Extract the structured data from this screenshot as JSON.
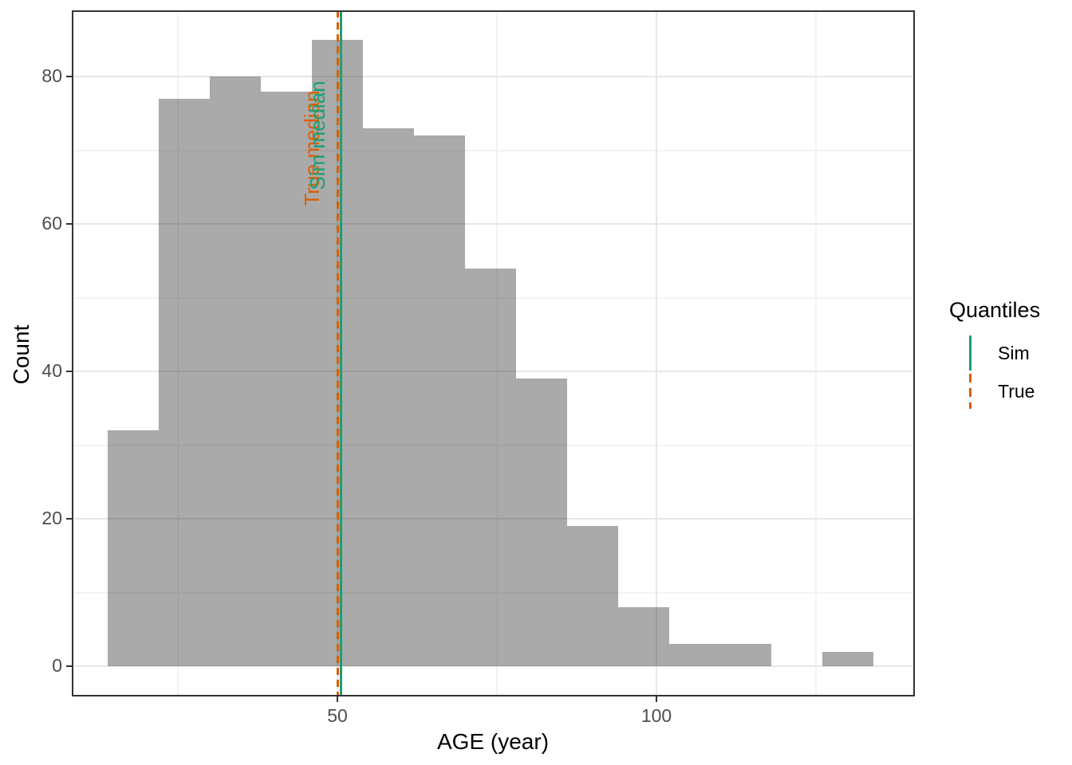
{
  "figure": {
    "background": "#ffffff"
  },
  "chart_data": {
    "type": "bar",
    "subtype": "histogram",
    "title": "",
    "xlabel": "AGE (year)",
    "ylabel": "Count",
    "bin_start": 14,
    "bin_width": 8,
    "bin_edges": [
      14,
      22,
      30,
      38,
      46,
      54,
      62,
      70,
      78,
      86,
      94,
      102,
      110,
      118,
      126,
      134
    ],
    "counts": [
      32,
      77,
      80,
      78,
      85,
      73,
      72,
      54,
      39,
      19,
      8,
      3,
      3,
      0,
      2
    ],
    "xlim": [
      8.375,
      140.5
    ],
    "ylim": [
      -4.1,
      89.0
    ],
    "x_major_ticks": [
      50,
      100
    ],
    "x_minor_gridlines": [
      25,
      75,
      125
    ],
    "y_major_ticks": [
      0,
      20,
      40,
      60,
      80
    ],
    "y_minor_gridlines": [
      10,
      30,
      50,
      70
    ],
    "grid": "on",
    "bar_color": "#000000",
    "bar_alpha": 0.335,
    "bar_color_flat": "#ABABAB",
    "vlines": [
      {
        "name": "Sim",
        "x": 50.5,
        "style": "solid",
        "color": "#1B9E77",
        "annotation": "Sim median",
        "annotation_dx": -29,
        "annotation_y": 72.0
      },
      {
        "name": "True",
        "x": 50.1,
        "style": "dashed",
        "color": "#D95F02",
        "annotation": "True median",
        "annotation_dx": -33,
        "annotation_y": 70.3
      }
    ]
  },
  "legend": {
    "title": "Quantiles",
    "entries": [
      {
        "label": "Sim",
        "color": "#1B9E77",
        "line": "solid"
      },
      {
        "label": "True",
        "color": "#D95F02",
        "line": "dashed"
      }
    ]
  },
  "colors": {
    "panel_border": "#333333",
    "gridline_major": "#E7E7E7",
    "gridline_minor": "#F3F3F3",
    "tick_label": "#4d4d4d",
    "axis_title": "#000000"
  }
}
